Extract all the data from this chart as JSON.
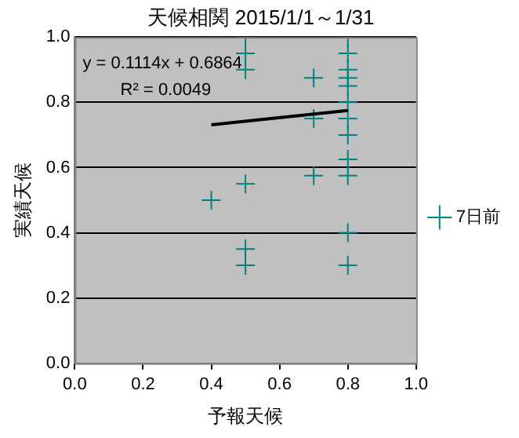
{
  "chart_data": {
    "type": "scatter",
    "title": "天候相関 2015/1/1～1/31",
    "xlabel": "予報天候",
    "ylabel": "実績天候",
    "xlim": [
      0,
      1
    ],
    "xticks": [
      {
        "value": 0,
        "label": "0.0"
      },
      {
        "value": 0.2,
        "label": "0.2"
      },
      {
        "value": 0.4,
        "label": "0.4"
      },
      {
        "value": 0.6,
        "label": "0.6"
      },
      {
        "value": 0.8,
        "label": "0.8"
      },
      {
        "value": 1,
        "label": "1.0"
      }
    ],
    "ylim": [
      0,
      1
    ],
    "yticks": [
      {
        "value": 0,
        "label": "0.0"
      },
      {
        "value": 0.2,
        "label": "0.2"
      },
      {
        "value": 0.4,
        "label": "0.4"
      },
      {
        "value": 0.6,
        "label": "0.6"
      },
      {
        "value": 0.8,
        "label": "0.8"
      },
      {
        "value": 1,
        "label": "1.0"
      }
    ],
    "series": [
      {
        "name": "7日前",
        "color": "#008080",
        "x": [
          0.4,
          0.5,
          0.5,
          0.5,
          0.5,
          0.5,
          0.5,
          0.7,
          0.7,
          0.7,
          0.8,
          0.8,
          0.8,
          0.8,
          0.8,
          0.8,
          0.8,
          0.8,
          0.8,
          0.8,
          0.8,
          0.8
        ],
        "values": [
          0.5,
          1.0,
          0.95,
          0.9,
          0.55,
          0.35,
          0.3,
          0.875,
          0.75,
          0.575,
          1.0,
          0.95,
          0.9,
          0.875,
          0.85,
          0.8,
          0.75,
          0.7,
          0.625,
          0.575,
          0.4,
          0.3
        ]
      },
      {
        "type": "line",
        "marker": "none",
        "color": "#000000",
        "x": [
          0.4,
          0.8
        ],
        "values": [
          0.731,
          0.775
        ]
      }
    ],
    "annotations": [
      "y = 0.1114x + 0.6864",
      "R² = 0.0049"
    ],
    "grid": "y",
    "legend": "right",
    "marker": "cross"
  }
}
